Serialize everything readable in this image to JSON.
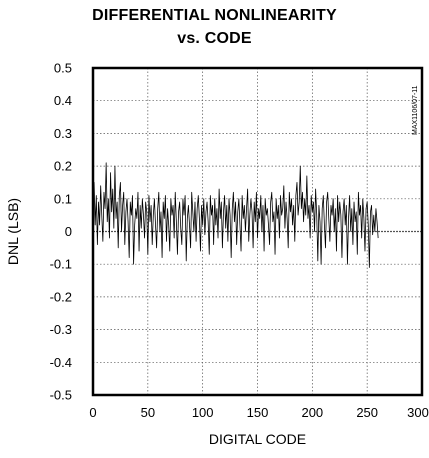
{
  "chart_data": {
    "type": "line",
    "title": "DIFFERENTIAL NONLINEARITY",
    "subtitle": "vs. CODE",
    "xlabel": "DIGITAL CODE",
    "ylabel": "DNL (LSB)",
    "xlim": [
      0,
      300
    ],
    "ylim": [
      -0.5,
      0.5
    ],
    "xticks": [
      "0",
      "50",
      "100",
      "150",
      "200",
      "250",
      "300"
    ],
    "yticks": [
      "0.5",
      "0.4",
      "0.3",
      "0.2",
      "0.1",
      "0",
      "-0.1",
      "-0.2",
      "-0.3",
      "-0.4",
      "-0.5"
    ],
    "grid": true,
    "figure_code": "MAX1106/07-11",
    "series": [
      {
        "values": [
          0.06,
          0.15,
          0.02,
          0.11,
          -0.04,
          0.09,
          0.02,
          0.14,
          0.05,
          -0.03,
          0.12,
          0.07,
          0.21,
          0.03,
          0.1,
          -0.02,
          0.18,
          0.06,
          0.13,
          0.01,
          0.2,
          0.04,
          0.09,
          -0.05,
          0.11,
          0.15,
          0.0,
          0.08,
          0.12,
          -0.04,
          0.06,
          0.1,
          0.03,
          -0.08,
          0.09,
          0.05,
          0.11,
          -0.1,
          0.02,
          0.07,
          0.04,
          0.12,
          -0.06,
          0.08,
          0.01,
          0.1,
          0.05,
          -0.02,
          0.09,
          0.06,
          -0.07,
          0.11,
          0.03,
          0.08,
          -0.04,
          0.05,
          0.1,
          0.02,
          -0.05,
          0.07,
          0.12,
          0.0,
          0.06,
          -0.08,
          0.09,
          0.04,
          0.11,
          -0.03,
          0.07,
          0.02,
          -0.06,
          0.1,
          0.05,
          0.08,
          -0.02,
          0.12,
          0.03,
          -0.07,
          0.06,
          0.09,
          0.01,
          -0.04,
          0.1,
          0.05,
          0.11,
          -0.09,
          0.04,
          0.08,
          0.02,
          -0.05,
          0.12,
          0.06,
          0.0,
          0.09,
          -0.03,
          0.07,
          0.11,
          0.04,
          -0.06,
          0.08,
          0.02,
          0.1,
          -0.01,
          0.06,
          0.09,
          0.03,
          -0.07,
          0.11,
          0.05,
          0.08,
          -0.04,
          0.1,
          0.02,
          0.07,
          -0.02,
          0.13,
          0.04,
          0.09,
          -0.05,
          0.06,
          0.11,
          0.01,
          0.08,
          -0.03,
          0.1,
          0.05,
          -0.08,
          0.07,
          0.12,
          0.03,
          0.09,
          -0.04,
          0.06,
          0.1,
          0.02,
          -0.06,
          0.11,
          0.04,
          0.08,
          0.0,
          0.07,
          0.13,
          -0.03,
          0.05,
          0.1,
          0.06,
          -0.05,
          0.09,
          0.03,
          0.12,
          -0.02,
          0.07,
          0.04,
          0.11,
          0.0,
          0.08,
          -0.06,
          0.1,
          0.05,
          0.07,
          0.02,
          -0.04,
          0.09,
          0.12,
          0.03,
          0.06,
          -0.07,
          0.1,
          0.04,
          0.08,
          -0.02,
          0.11,
          0.05,
          0.07,
          0.14,
          0.01,
          0.09,
          0.04,
          -0.05,
          0.12,
          0.06,
          0.1,
          0.02,
          0.08,
          -0.03,
          0.11,
          0.15,
          0.05,
          0.09,
          0.2,
          0.07,
          0.12,
          0.03,
          0.1,
          0.05,
          0.17,
          0.04,
          0.08,
          -0.02,
          0.11,
          0.06,
          0.09,
          0.0,
          0.13,
          0.05,
          -0.09,
          0.08,
          0.03,
          -0.1,
          0.07,
          0.11,
          0.02,
          -0.05,
          0.09,
          0.12,
          0.04,
          -0.03,
          0.08,
          0.05,
          0.1,
          0.0,
          0.07,
          -0.06,
          0.11,
          0.03,
          0.09,
          0.05,
          -0.08,
          0.06,
          0.1,
          0.02,
          0.08,
          -0.1,
          0.04,
          0.11,
          0.0,
          0.07,
          -0.04,
          0.09,
          0.03,
          0.06,
          -0.07,
          0.12,
          0.05,
          0.08,
          -0.02,
          0.1,
          0.04,
          -0.06,
          0.07,
          0.09,
          0.02,
          -0.11,
          0.06,
          0.08,
          -0.01,
          0.05,
          0.0,
          0.07,
          0.03,
          -0.02
        ]
      }
    ]
  }
}
